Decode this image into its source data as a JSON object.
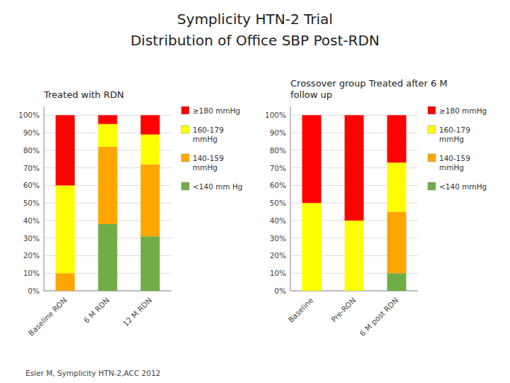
{
  "title": "Symplicity HTN-2 Trial",
  "subtitle": "Distribution of Office SBP Post-RDN",
  "annotations": [
    "Esler M, Symplicity HTN-2,ACC 2012"
  ],
  "chart_data": [
    {
      "type": "bar",
      "stacked": true,
      "grid": true,
      "legend": "right",
      "subtitle": "Treated with RDN",
      "categories": [
        "Baseline RON",
        "6 M RDN",
        "12 M RDN"
      ],
      "series": [
        {
          "name": "<140 mm Hg",
          "color": "#70ad47",
          "values": [
            0,
            38,
            31
          ]
        },
        {
          "name": "140-159\nmmHg",
          "color": "#ffa500",
          "values": [
            10,
            44,
            41
          ]
        },
        {
          "name": "160-179\nmmHg",
          "color": "#ffff00",
          "values": [
            50,
            13,
            17
          ]
        },
        {
          "name": "≥180 mmHg",
          "color": "#ff0000",
          "values": [
            40,
            5,
            11
          ]
        }
      ],
      "ylim": [
        0,
        105
      ],
      "yticks": [
        {
          "value": 0,
          "label": "0%"
        },
        {
          "value": 10,
          "label": "10%"
        },
        {
          "value": 20,
          "label": "20%"
        },
        {
          "value": 30,
          "label": "30%"
        },
        {
          "value": 40,
          "label": "40%"
        },
        {
          "value": 50,
          "label": "50%"
        },
        {
          "value": 60,
          "label": "60%"
        },
        {
          "value": 70,
          "label": "70%"
        },
        {
          "value": 80,
          "label": "80%"
        },
        {
          "value": 90,
          "label": "90%"
        },
        {
          "value": 100,
          "label": "100%"
        }
      ]
    },
    {
      "type": "bar",
      "stacked": true,
      "grid": true,
      "legend": "right",
      "subtitle": "Crossover group Treated after 6 M\nfollow up",
      "categories": [
        "Baseline",
        "Pre-RON",
        "6 M post RDN"
      ],
      "series": [
        {
          "name": "<140 mmHg",
          "color": "#70ad47",
          "values": [
            0,
            0,
            10
          ]
        },
        {
          "name": "140-159\nmmHg",
          "color": "#ffa500",
          "values": [
            0,
            0,
            35
          ]
        },
        {
          "name": "160-179\nmmHg",
          "color": "#ffff00",
          "values": [
            50,
            40,
            28
          ]
        },
        {
          "name": "≥180 mmHg",
          "color": "#ff0000",
          "values": [
            50,
            60,
            27
          ]
        }
      ],
      "ylim": [
        0,
        105
      ],
      "yticks": [
        {
          "value": 0,
          "label": "0%"
        },
        {
          "value": 10,
          "label": "10%"
        },
        {
          "value": 20,
          "label": "20%"
        },
        {
          "value": 30,
          "label": "30%"
        },
        {
          "value": 40,
          "label": "40%"
        },
        {
          "value": 50,
          "label": "50%"
        },
        {
          "value": 60,
          "label": "60%"
        },
        {
          "value": 70,
          "label": "70%"
        },
        {
          "value": 80,
          "label": "80%"
        },
        {
          "value": 90,
          "label": "90%"
        },
        {
          "value": 100,
          "label": "100%"
        }
      ]
    }
  ]
}
